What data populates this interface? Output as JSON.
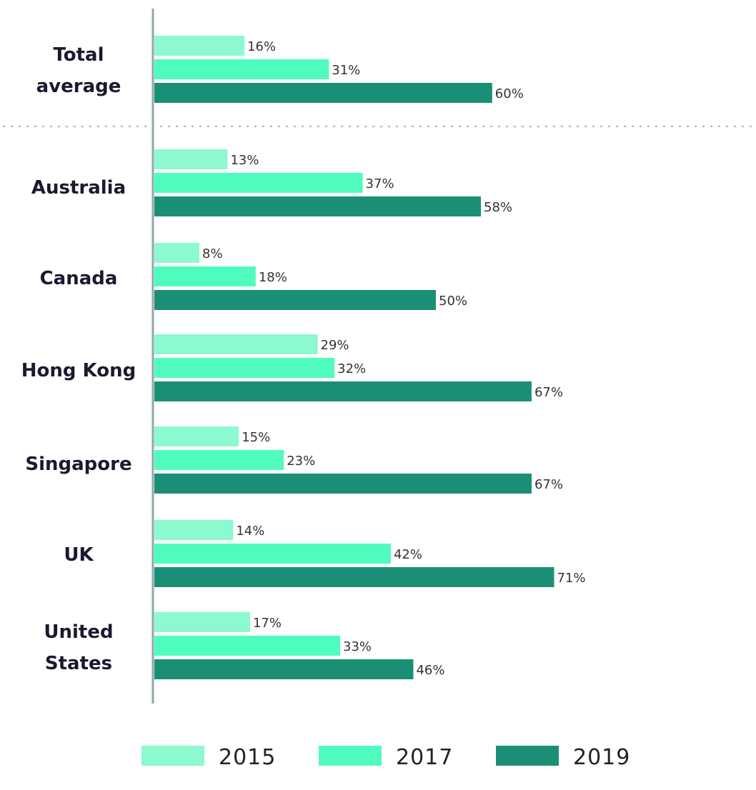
{
  "chart_data": {
    "type": "bar",
    "orientation": "horizontal",
    "categories": [
      "Total average",
      "Australia",
      "Canada",
      "Hong Kong",
      "Singapore",
      "UK",
      "United States"
    ],
    "series": [
      {
        "name": "2015",
        "values": [
          16,
          13,
          8,
          29,
          15,
          14,
          17
        ],
        "color": "#8cf9cf"
      },
      {
        "name": "2017",
        "values": [
          31,
          37,
          18,
          32,
          23,
          42,
          33
        ],
        "color": "#50fcbd"
      },
      {
        "name": "2019",
        "values": [
          60,
          58,
          50,
          67,
          67,
          71,
          46
        ],
        "color": "#1b8f75"
      }
    ],
    "value_suffix": "%",
    "xlim": [
      0,
      100
    ],
    "grid": false,
    "legend_position": "bottom",
    "separator_after_category": "Total average"
  }
}
